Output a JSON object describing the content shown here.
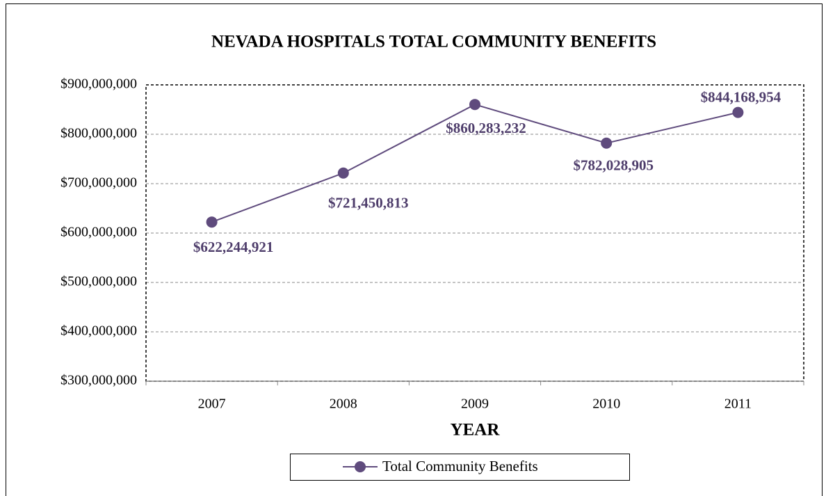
{
  "chart_data": {
    "type": "line",
    "title": "NEVADA HOSPITALS TOTAL COMMUNITY BENEFITS",
    "x_label": "YEAR",
    "categories": [
      "2007",
      "2008",
      "2009",
      "2010",
      "2011"
    ],
    "series": [
      {
        "name": "Total Community Benefits",
        "color": "#5f4b7d",
        "values": [
          622244921,
          721450813,
          860283232,
          782028905,
          844168954
        ],
        "value_labels": [
          "$622,244,921",
          "$721,450,813",
          "$860,283,232",
          "$782,028,905",
          "$844,168,954"
        ]
      }
    ],
    "ylim": [
      300000000,
      900000000
    ],
    "yticks": [
      {
        "value": 300000000,
        "label": "$300,000,000"
      },
      {
        "value": 400000000,
        "label": "$400,000,000"
      },
      {
        "value": 500000000,
        "label": "$500,000,000"
      },
      {
        "value": 600000000,
        "label": "$600,000,000"
      },
      {
        "value": 700000000,
        "label": "$700,000,000"
      },
      {
        "value": 800000000,
        "label": "$800,000,000"
      },
      {
        "value": 900000000,
        "label": "$900,000,000"
      }
    ],
    "grid": true,
    "legend": "bottom"
  }
}
